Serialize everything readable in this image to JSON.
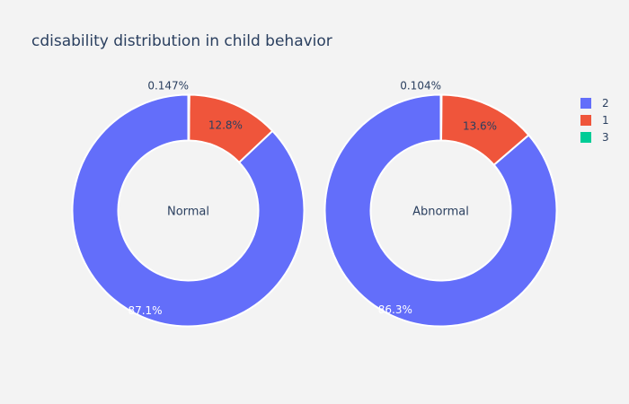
{
  "title": "cdisability distribution in child behavior",
  "colors": {
    "background": "#f3f3f3",
    "text": "#2a3f5f",
    "series": {
      "2": "#636efa",
      "1": "#ef553b",
      "3": "#00cc96"
    }
  },
  "legend": {
    "placement": "top-right",
    "items": [
      "2",
      "1",
      "3"
    ]
  },
  "chart_data": [
    {
      "type": "pie",
      "hole": true,
      "center_label": "Normal",
      "categories": [
        "2",
        "1",
        "3"
      ],
      "values": [
        87.1,
        12.8,
        0.147
      ],
      "labels": [
        "87.1%",
        "12.8%",
        "0.147%"
      ]
    },
    {
      "type": "pie",
      "hole": true,
      "center_label": "Abnormal",
      "categories": [
        "2",
        "1",
        "3"
      ],
      "values": [
        86.3,
        13.6,
        0.104
      ],
      "labels": [
        "86.3%",
        "13.6%",
        "0.104%"
      ]
    }
  ]
}
